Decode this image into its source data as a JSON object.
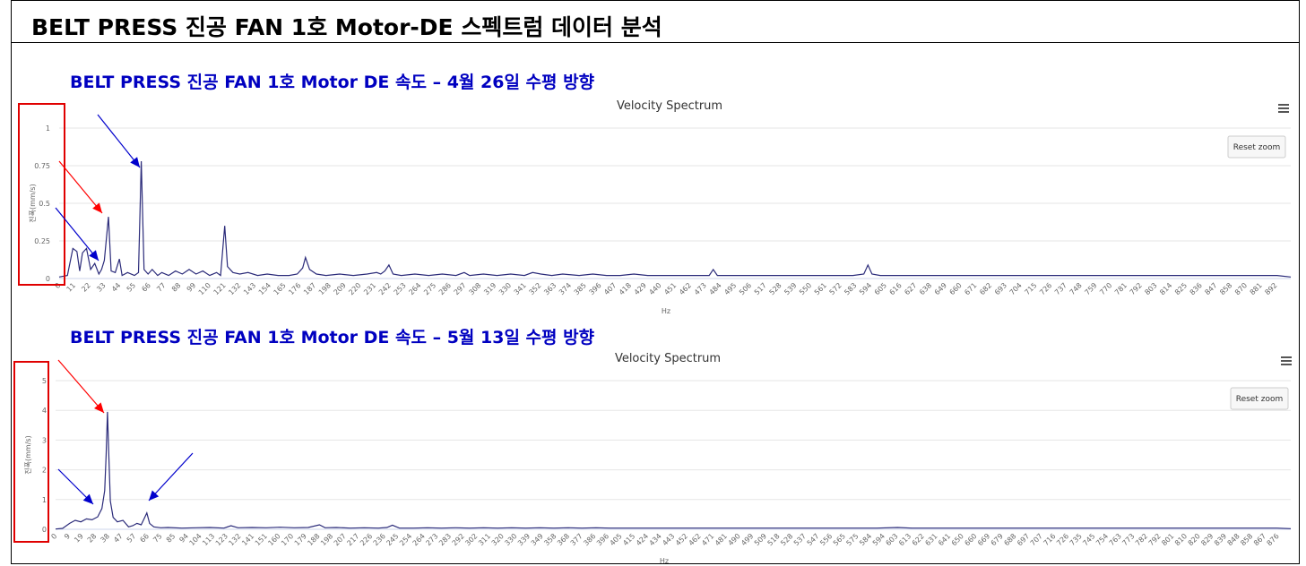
{
  "header": {
    "title": "BELT PRESS 진공 FAN 1호 Motor-DE 스펙트럼 데이터 분석"
  },
  "chart_data": [
    {
      "type": "line",
      "heading": "BELT PRESS 진공 FAN 1호 Motor DE 속도 – 4월 26일 수평 방향",
      "title": "Velocity Spectrum",
      "xlabel": "Hz",
      "ylabel": "진폭(mm/s)",
      "xlim": [
        0,
        900
      ],
      "ylim": [
        0,
        1
      ],
      "yticks": [
        0,
        0.25,
        0.5,
        0.75,
        1
      ],
      "grid": true,
      "reset_label": "Reset zoom",
      "menu_icon": "hamburger-menu-icon",
      "xticks": [
        "0",
        "11",
        "22",
        "33",
        "44",
        "55",
        "66",
        "77",
        "88",
        "99",
        "110",
        "121",
        "132",
        "143",
        "154",
        "165",
        "176",
        "187",
        "198",
        "209",
        "220",
        "231",
        "242",
        "253",
        "264",
        "275",
        "286",
        "297",
        "308",
        "319",
        "330",
        "341",
        "352",
        "363",
        "374",
        "385",
        "396",
        "407",
        "418",
        "429",
        "440",
        "451",
        "462",
        "473",
        "484",
        "495",
        "506",
        "517",
        "528",
        "539",
        "550",
        "561",
        "572",
        "583",
        "594",
        "605",
        "616",
        "627",
        "638",
        "649",
        "660",
        "671",
        "682",
        "693",
        "704",
        "715",
        "726",
        "737",
        "748",
        "759",
        "770",
        "781",
        "792",
        "803",
        "814",
        "825",
        "836",
        "847",
        "858",
        "870",
        "881",
        "892"
      ],
      "series": [
        {
          "color": "#2b2b7a",
          "points": [
            [
              0,
              0.01
            ],
            [
              6,
              0.02
            ],
            [
              10,
              0.2
            ],
            [
              13,
              0.18
            ],
            [
              15,
              0.05
            ],
            [
              17,
              0.17
            ],
            [
              20,
              0.2
            ],
            [
              23,
              0.06
            ],
            [
              26,
              0.1
            ],
            [
              29,
              0.03
            ],
            [
              31,
              0.06
            ],
            [
              33,
              0.12
            ],
            [
              36,
              0.41
            ],
            [
              38,
              0.05
            ],
            [
              41,
              0.04
            ],
            [
              44,
              0.13
            ],
            [
              46,
              0.02
            ],
            [
              50,
              0.04
            ],
            [
              55,
              0.02
            ],
            [
              58,
              0.04
            ],
            [
              60,
              0.78
            ],
            [
              62,
              0.06
            ],
            [
              65,
              0.03
            ],
            [
              68,
              0.06
            ],
            [
              72,
              0.02
            ],
            [
              75,
              0.04
            ],
            [
              80,
              0.02
            ],
            [
              85,
              0.05
            ],
            [
              90,
              0.03
            ],
            [
              95,
              0.06
            ],
            [
              100,
              0.03
            ],
            [
              105,
              0.05
            ],
            [
              110,
              0.02
            ],
            [
              115,
              0.04
            ],
            [
              118,
              0.02
            ],
            [
              121,
              0.35
            ],
            [
              123,
              0.08
            ],
            [
              127,
              0.04
            ],
            [
              132,
              0.03
            ],
            [
              138,
              0.04
            ],
            [
              145,
              0.02
            ],
            [
              152,
              0.03
            ],
            [
              160,
              0.02
            ],
            [
              168,
              0.02
            ],
            [
              174,
              0.03
            ],
            [
              178,
              0.07
            ],
            [
              180,
              0.14
            ],
            [
              183,
              0.06
            ],
            [
              188,
              0.03
            ],
            [
              195,
              0.02
            ],
            [
              205,
              0.03
            ],
            [
              215,
              0.02
            ],
            [
              225,
              0.03
            ],
            [
              232,
              0.04
            ],
            [
              235,
              0.03
            ],
            [
              238,
              0.05
            ],
            [
              241,
              0.09
            ],
            [
              244,
              0.03
            ],
            [
              250,
              0.02
            ],
            [
              260,
              0.03
            ],
            [
              270,
              0.02
            ],
            [
              280,
              0.03
            ],
            [
              290,
              0.02
            ],
            [
              296,
              0.04
            ],
            [
              300,
              0.02
            ],
            [
              310,
              0.03
            ],
            [
              320,
              0.02
            ],
            [
              330,
              0.03
            ],
            [
              340,
              0.02
            ],
            [
              346,
              0.04
            ],
            [
              352,
              0.03
            ],
            [
              360,
              0.02
            ],
            [
              368,
              0.03
            ],
            [
              380,
              0.02
            ],
            [
              390,
              0.03
            ],
            [
              400,
              0.02
            ],
            [
              410,
              0.02
            ],
            [
              420,
              0.03
            ],
            [
              430,
              0.02
            ],
            [
              440,
              0.02
            ],
            [
              450,
              0.02
            ],
            [
              460,
              0.02
            ],
            [
              470,
              0.02
            ],
            [
              475,
              0.02
            ],
            [
              478,
              0.06
            ],
            [
              481,
              0.02
            ],
            [
              490,
              0.02
            ],
            [
              500,
              0.02
            ],
            [
              510,
              0.02
            ],
            [
              520,
              0.02
            ],
            [
              530,
              0.02
            ],
            [
              540,
              0.02
            ],
            [
              550,
              0.02
            ],
            [
              560,
              0.02
            ],
            [
              570,
              0.02
            ],
            [
              580,
              0.02
            ],
            [
              588,
              0.03
            ],
            [
              591,
              0.09
            ],
            [
              594,
              0.03
            ],
            [
              600,
              0.02
            ],
            [
              610,
              0.02
            ],
            [
              620,
              0.02
            ],
            [
              630,
              0.02
            ],
            [
              640,
              0.02
            ],
            [
              650,
              0.02
            ],
            [
              660,
              0.02
            ],
            [
              670,
              0.02
            ],
            [
              680,
              0.02
            ],
            [
              690,
              0.02
            ],
            [
              700,
              0.02
            ],
            [
              710,
              0.02
            ],
            [
              720,
              0.02
            ],
            [
              730,
              0.02
            ],
            [
              740,
              0.02
            ],
            [
              750,
              0.02
            ],
            [
              760,
              0.02
            ],
            [
              770,
              0.02
            ],
            [
              780,
              0.02
            ],
            [
              790,
              0.02
            ],
            [
              800,
              0.02
            ],
            [
              810,
              0.02
            ],
            [
              820,
              0.02
            ],
            [
              830,
              0.02
            ],
            [
              840,
              0.02
            ],
            [
              850,
              0.02
            ],
            [
              860,
              0.02
            ],
            [
              870,
              0.02
            ],
            [
              880,
              0.02
            ],
            [
              890,
              0.02
            ],
            [
              900,
              0.01
            ]
          ]
        }
      ]
    },
    {
      "type": "line",
      "heading": "BELT PRESS 진공 FAN 1호 Motor DE 속도 – 5월 13일 수평 방향",
      "title": "Velocity Spectrum",
      "xlabel": "Hz",
      "ylabel": "진폭(mm/s)",
      "xlim": [
        0,
        880
      ],
      "ylim": [
        0,
        5
      ],
      "yticks": [
        0,
        1,
        2,
        3,
        4,
        5
      ],
      "grid": true,
      "reset_label": "Reset zoom",
      "menu_icon": "hamburger-menu-icon",
      "xticks": [
        "0",
        "9",
        "19",
        "28",
        "38",
        "47",
        "57",
        "66",
        "75",
        "85",
        "94",
        "104",
        "113",
        "123",
        "132",
        "141",
        "151",
        "160",
        "170",
        "179",
        "188",
        "198",
        "207",
        "217",
        "226",
        "236",
        "245",
        "254",
        "264",
        "273",
        "283",
        "292",
        "302",
        "311",
        "320",
        "330",
        "339",
        "349",
        "358",
        "368",
        "377",
        "386",
        "396",
        "405",
        "415",
        "424",
        "434",
        "443",
        "452",
        "462",
        "471",
        "481",
        "490",
        "499",
        "509",
        "518",
        "528",
        "537",
        "547",
        "556",
        "565",
        "575",
        "584",
        "594",
        "603",
        "613",
        "622",
        "631",
        "641",
        "650",
        "660",
        "669",
        "679",
        "688",
        "697",
        "707",
        "716",
        "726",
        "735",
        "745",
        "754",
        "763",
        "773",
        "782",
        "792",
        "801",
        "810",
        "820",
        "829",
        "839",
        "848",
        "858",
        "867",
        "876"
      ],
      "series": [
        {
          "color": "#2b2b7a",
          "points": [
            [
              0,
              0.01
            ],
            [
              5,
              0.03
            ],
            [
              10,
              0.2
            ],
            [
              14,
              0.3
            ],
            [
              18,
              0.25
            ],
            [
              22,
              0.35
            ],
            [
              26,
              0.32
            ],
            [
              30,
              0.42
            ],
            [
              33,
              0.7
            ],
            [
              35,
              1.3
            ],
            [
              36,
              2.5
            ],
            [
              37,
              3.95
            ],
            [
              38,
              2.4
            ],
            [
              39,
              0.95
            ],
            [
              41,
              0.4
            ],
            [
              44,
              0.25
            ],
            [
              48,
              0.3
            ],
            [
              52,
              0.08
            ],
            [
              55,
              0.12
            ],
            [
              58,
              0.2
            ],
            [
              61,
              0.15
            ],
            [
              63,
              0.35
            ],
            [
              65,
              0.55
            ],
            [
              67,
              0.2
            ],
            [
              70,
              0.08
            ],
            [
              75,
              0.05
            ],
            [
              80,
              0.06
            ],
            [
              90,
              0.04
            ],
            [
              100,
              0.05
            ],
            [
              110,
              0.06
            ],
            [
              120,
              0.04
            ],
            [
              125,
              0.12
            ],
            [
              130,
              0.05
            ],
            [
              140,
              0.06
            ],
            [
              150,
              0.05
            ],
            [
              160,
              0.07
            ],
            [
              170,
              0.05
            ],
            [
              180,
              0.06
            ],
            [
              188,
              0.15
            ],
            [
              192,
              0.05
            ],
            [
              200,
              0.06
            ],
            [
              210,
              0.04
            ],
            [
              220,
              0.05
            ],
            [
              230,
              0.04
            ],
            [
              236,
              0.06
            ],
            [
              240,
              0.14
            ],
            [
              245,
              0.04
            ],
            [
              255,
              0.04
            ],
            [
              265,
              0.05
            ],
            [
              275,
              0.04
            ],
            [
              285,
              0.05
            ],
            [
              295,
              0.04
            ],
            [
              305,
              0.05
            ],
            [
              315,
              0.04
            ],
            [
              325,
              0.05
            ],
            [
              335,
              0.04
            ],
            [
              345,
              0.05
            ],
            [
              355,
              0.04
            ],
            [
              365,
              0.05
            ],
            [
              375,
              0.04
            ],
            [
              385,
              0.05
            ],
            [
              395,
              0.04
            ],
            [
              405,
              0.04
            ],
            [
              415,
              0.04
            ],
            [
              425,
              0.04
            ],
            [
              435,
              0.04
            ],
            [
              445,
              0.04
            ],
            [
              455,
              0.04
            ],
            [
              465,
              0.04
            ],
            [
              475,
              0.04
            ],
            [
              485,
              0.04
            ],
            [
              495,
              0.04
            ],
            [
              505,
              0.04
            ],
            [
              515,
              0.04
            ],
            [
              525,
              0.04
            ],
            [
              535,
              0.04
            ],
            [
              545,
              0.04
            ],
            [
              555,
              0.04
            ],
            [
              565,
              0.04
            ],
            [
              575,
              0.04
            ],
            [
              585,
              0.04
            ],
            [
              600,
              0.06
            ],
            [
              610,
              0.04
            ],
            [
              620,
              0.04
            ],
            [
              630,
              0.04
            ],
            [
              640,
              0.04
            ],
            [
              650,
              0.04
            ],
            [
              660,
              0.04
            ],
            [
              670,
              0.04
            ],
            [
              680,
              0.04
            ],
            [
              690,
              0.04
            ],
            [
              700,
              0.04
            ],
            [
              710,
              0.04
            ],
            [
              720,
              0.04
            ],
            [
              730,
              0.04
            ],
            [
              740,
              0.04
            ],
            [
              750,
              0.04
            ],
            [
              760,
              0.04
            ],
            [
              770,
              0.04
            ],
            [
              780,
              0.04
            ],
            [
              790,
              0.04
            ],
            [
              800,
              0.04
            ],
            [
              810,
              0.04
            ],
            [
              820,
              0.04
            ],
            [
              830,
              0.04
            ],
            [
              840,
              0.04
            ],
            [
              850,
              0.04
            ],
            [
              860,
              0.04
            ],
            [
              870,
              0.04
            ],
            [
              880,
              0.02
            ]
          ]
        }
      ]
    }
  ]
}
